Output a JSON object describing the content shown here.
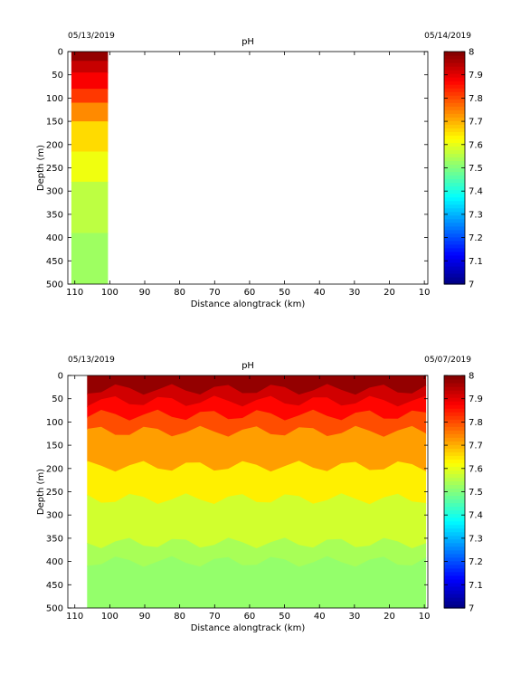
{
  "chart_data": [
    {
      "type": "heatmap",
      "title": "pH",
      "date_left": "05/13/2019",
      "date_right": "05/14/2019",
      "xlabel": "Distance alongtrack (km)",
      "ylabel": "Depth (m)",
      "xlim": [
        112,
        9
      ],
      "ylim": [
        0,
        500
      ],
      "x_ticks": [
        110,
        100,
        90,
        80,
        70,
        60,
        50,
        40,
        30,
        20,
        10
      ],
      "y_ticks": [
        0,
        50,
        100,
        150,
        200,
        250,
        300,
        350,
        400,
        450,
        500
      ],
      "colorbar": {
        "min": 7,
        "max": 8,
        "ticks": [
          7,
          7.1,
          7.2,
          7.3,
          7.4,
          7.5,
          7.6,
          7.7,
          7.8,
          7.9,
          8
        ]
      },
      "data_extent_km": [
        111,
        100.5
      ],
      "layers": [
        {
          "top_m": 0,
          "ph": 7.98
        },
        {
          "top_m": 20,
          "ph": 7.93
        },
        {
          "top_m": 45,
          "ph": 7.88
        },
        {
          "top_m": 80,
          "ph": 7.82
        },
        {
          "top_m": 110,
          "ph": 7.74
        },
        {
          "top_m": 150,
          "ph": 7.66
        },
        {
          "top_m": 215,
          "ph": 7.61
        },
        {
          "top_m": 280,
          "ph": 7.56
        },
        {
          "top_m": 390,
          "ph": 7.53
        }
      ]
    },
    {
      "type": "heatmap",
      "title": "pH",
      "date_left": "05/13/2019",
      "date_right": "05/07/2019",
      "xlabel": "Distance alongtrack (km)",
      "ylabel": "Depth (m)",
      "xlim": [
        112,
        9
      ],
      "ylim": [
        0,
        500
      ],
      "x_ticks": [
        110,
        100,
        90,
        80,
        70,
        60,
        50,
        40,
        30,
        20,
        10
      ],
      "y_ticks": [
        0,
        50,
        100,
        150,
        200,
        250,
        300,
        350,
        400,
        450,
        500
      ],
      "colorbar": {
        "min": 7,
        "max": 8,
        "ticks": [
          7,
          7.1,
          7.2,
          7.3,
          7.4,
          7.5,
          7.6,
          7.7,
          7.8,
          7.9,
          8
        ]
      },
      "data_extent_km": [
        106.5,
        9.5
      ],
      "layers": [
        {
          "top_m": 0,
          "ph": 7.98
        },
        {
          "top_m": 30,
          "ph": 7.92
        },
        {
          "top_m": 55,
          "ph": 7.87
        },
        {
          "top_m": 85,
          "ph": 7.8
        },
        {
          "top_m": 120,
          "ph": 7.72
        },
        {
          "top_m": 195,
          "ph": 7.64
        },
        {
          "top_m": 265,
          "ph": 7.58
        },
        {
          "top_m": 360,
          "ph": 7.54
        },
        {
          "top_m": 400,
          "ph": 7.52
        }
      ]
    }
  ]
}
